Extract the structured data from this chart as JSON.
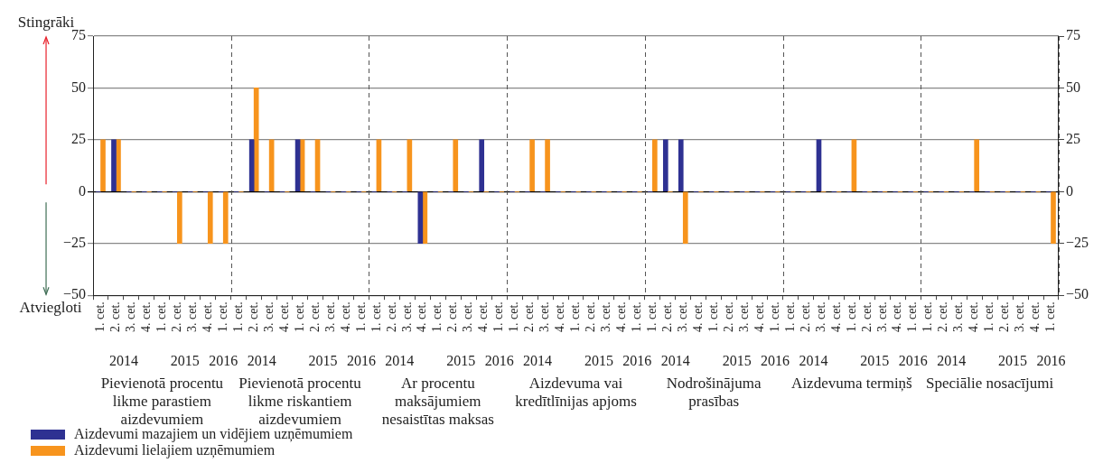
{
  "chart_data": {
    "type": "bar",
    "categories": [
      "1. cet.",
      "2. cet.",
      "3. cet.",
      "4. cet.",
      "1. cet.",
      "2. cet.",
      "3. cet.",
      "4. cet.",
      "1. cet.",
      "1. cet.",
      "2. cet.",
      "3. cet.",
      "4. cet.",
      "1. cet.",
      "2. cet.",
      "3. cet.",
      "4. cet.",
      "1. cet.",
      "1. cet.",
      "2. cet.",
      "3. cet.",
      "4. cet.",
      "1. cet.",
      "2. cet.",
      "3. cet.",
      "4. cet.",
      "1. cet.",
      "1. cet.",
      "2. cet.",
      "3. cet.",
      "4. cet.",
      "1. cet.",
      "2. cet.",
      "3. cet.",
      "4. cet.",
      "1. cet.",
      "1. cet.",
      "2. cet.",
      "3. cet.",
      "4. cet.",
      "1. cet.",
      "2. cet.",
      "3. cet.",
      "4. cet.",
      "1. cet.",
      "1. cet.",
      "2. cet.",
      "3. cet.",
      "4. cet.",
      "1. cet.",
      "2. cet.",
      "3. cet.",
      "4. cet.",
      "1. cet.",
      "1. cet.",
      "2. cet.",
      "3. cet.",
      "4. cet.",
      "1. cet.",
      "2. cet.",
      "3. cet.",
      "4. cet.",
      "1. cet."
    ],
    "series": [
      {
        "name": "Aizdevumi mazajiem un vidējiem uzņēmumiem",
        "color": "#2e3192",
        "values": [
          0,
          25,
          0,
          0,
          0,
          0,
          0,
          0,
          0,
          0,
          25,
          0,
          0,
          25,
          0,
          0,
          0,
          0,
          0,
          0,
          0,
          -25,
          0,
          0,
          0,
          25,
          0,
          0,
          0,
          0,
          0,
          0,
          0,
          0,
          0,
          0,
          0,
          25,
          25,
          0,
          0,
          0,
          0,
          0,
          0,
          0,
          0,
          25,
          0,
          0,
          0,
          0,
          0,
          0,
          0,
          0,
          0,
          0,
          0,
          0,
          0,
          0,
          0
        ]
      },
      {
        "name": "Aizdevumi lielajiem uzņēmumiem",
        "color": "#f7941d",
        "values": [
          25,
          25,
          0,
          0,
          0,
          -25,
          0,
          -25,
          -25,
          0,
          50,
          25,
          0,
          25,
          25,
          0,
          0,
          0,
          25,
          0,
          25,
          -25,
          0,
          25,
          0,
          0,
          0,
          0,
          25,
          25,
          0,
          0,
          0,
          0,
          0,
          0,
          25,
          0,
          -25,
          0,
          0,
          0,
          0,
          0,
          0,
          0,
          0,
          0,
          0,
          25,
          0,
          0,
          0,
          0,
          0,
          0,
          0,
          25,
          0,
          0,
          0,
          0,
          -25
        ]
      }
    ],
    "ylim": [
      -50,
      75
    ],
    "yticks": [
      -50,
      -25,
      0,
      25,
      50,
      75
    ],
    "y2lim": [
      -50,
      75
    ],
    "y2ticks": [
      -50,
      -25,
      0,
      25,
      50,
      75
    ],
    "grid": "y",
    "legend": "bottom left",
    "annotations": [
      "Stingrāki",
      "Atviegloti",
      "Pievienotā procentu likme parastiem aizdevumiem",
      "2014",
      "2015",
      "2016",
      "Pievienotā procentu likme riskantiem aizdevumiem",
      "2014",
      "2015",
      "2016",
      "Ar procentu maksājumiem nesaistītas maksas",
      "2014",
      "2015",
      "2016",
      "Aizdevuma vai kredītlīnijas apjoms",
      "2014",
      "2015",
      "2016",
      "Nodrošinājuma prasības",
      "2014",
      "2015",
      "2016",
      "Aizdevuma termiņš",
      "2014",
      "2015",
      "2016",
      "Speciālie nosacījumi",
      "2014",
      "2015",
      "2016"
    ]
  }
}
